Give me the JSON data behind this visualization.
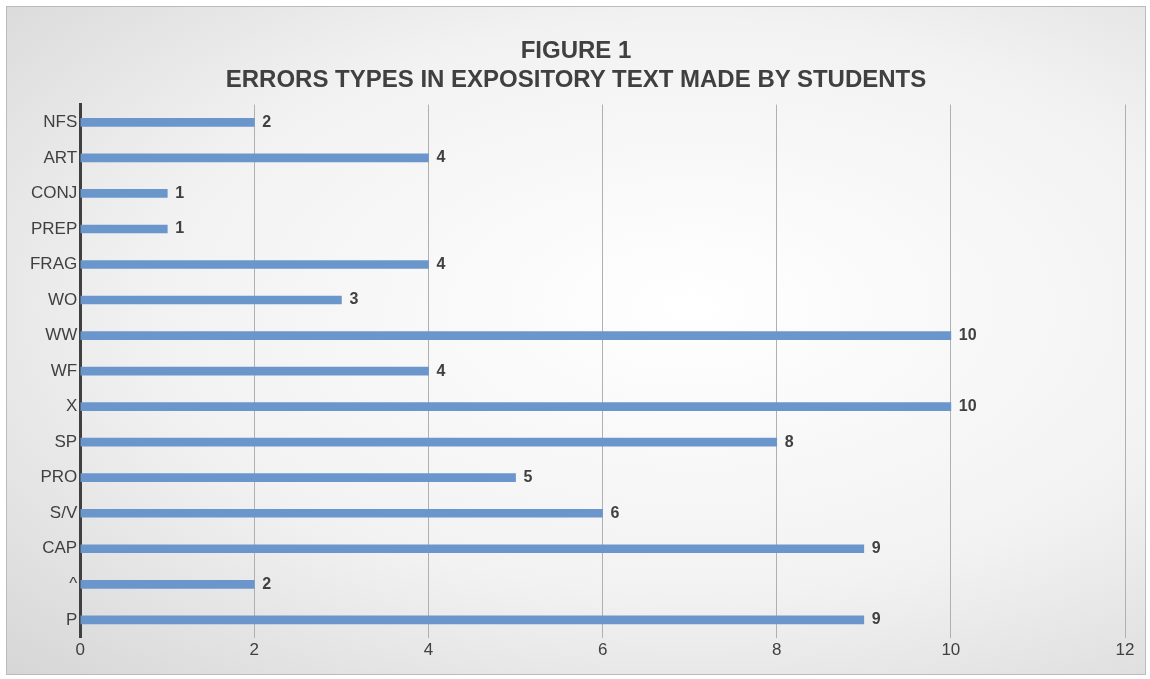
{
  "chart_data": {
    "type": "bar",
    "orientation": "horizontal",
    "title": "FIGURE 1",
    "subtitle": "ERRORS TYPES IN EXPOSITORY TEXT MADE BY STUDENTS",
    "categories": [
      "NFS",
      "ART",
      "CONJ",
      "PREP",
      "FRAG",
      "WO",
      "WW",
      "WF",
      "X",
      "SP",
      "PRO",
      "S/V",
      "CAP",
      "^",
      "P"
    ],
    "values": [
      2,
      4,
      1,
      1,
      4,
      3,
      10,
      4,
      10,
      8,
      5,
      6,
      9,
      2,
      9
    ],
    "color": "#6a96cc",
    "xlim": [
      0,
      12
    ],
    "xticks": [
      0,
      2,
      4,
      6,
      8,
      10,
      12
    ],
    "grid": "x",
    "legend": false,
    "data_labels": true
  }
}
